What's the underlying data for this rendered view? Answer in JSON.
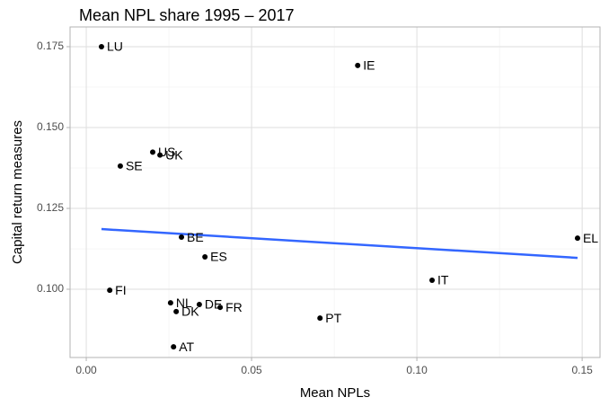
{
  "chart_data": {
    "type": "scatter",
    "title": "Mean NPL share 1995 – 2017",
    "x_label": "Mean NPLs",
    "y_label": "Capital return measures",
    "labels": [
      "LU",
      "IE",
      "US",
      "UK",
      "SE",
      "BE",
      "ES",
      "EL",
      "IT",
      "FI",
      "NL",
      "DE",
      "DK",
      "FR",
      "PT",
      "AT"
    ],
    "x": [
      0.0046,
      0.0821,
      0.0201,
      0.0223,
      0.0103,
      0.0288,
      0.0359,
      0.1486,
      0.1046,
      0.0071,
      0.0255,
      0.0342,
      0.0272,
      0.0405,
      0.0707,
      0.0264
    ],
    "values": [
      0.175,
      0.1692,
      0.1424,
      0.1415,
      0.1381,
      0.1161,
      0.11,
      0.1158,
      0.1028,
      0.0997,
      0.0958,
      0.0953,
      0.0931,
      0.0944,
      0.0911,
      0.0822
    ],
    "color": "#000000",
    "trend_line": {
      "x": [
        0.0046,
        0.1486
      ],
      "values": [
        0.1186,
        0.1097
      ],
      "color": "#3366ff"
    },
    "xlim": [
      -0.0049,
      0.1554
    ],
    "ylim": [
      0.0789,
      0.1811
    ],
    "xticks": [
      {
        "value": 0,
        "label": "0.00"
      },
      {
        "value": 0.05,
        "label": "0.05"
      },
      {
        "value": 0.1,
        "label": "0.10"
      },
      {
        "value": 0.15,
        "label": "0.15"
      }
    ],
    "yticks": [
      {
        "value": 0.1,
        "label": "0.100"
      },
      0.125,
      {
        "value": 0.15,
        "label": "0.150"
      },
      0.175
    ],
    "grid": true
  }
}
